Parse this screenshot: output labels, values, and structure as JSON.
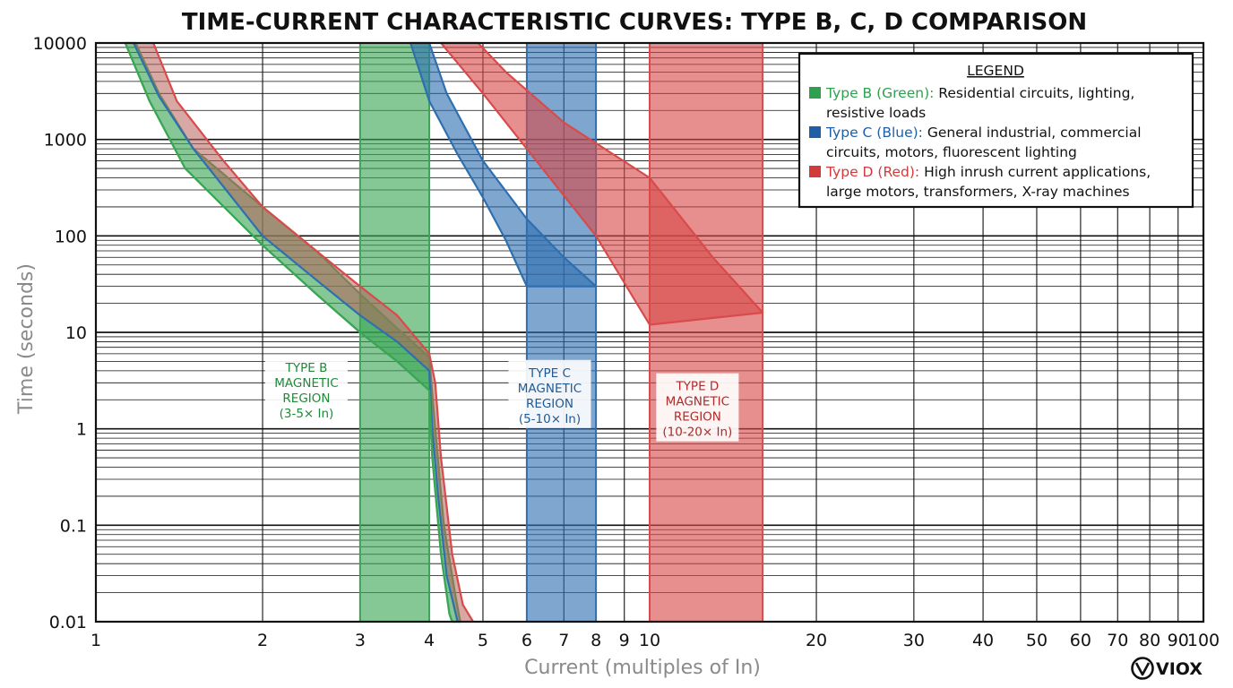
{
  "chart_data": {
    "type": "line",
    "title": "TIME-CURRENT CHARACTERISTIC CURVES: TYPE B, C, D COMPARISON",
    "xlabel": "Current (multiples of In)",
    "ylabel": "Time (seconds)",
    "xscale": "log",
    "yscale": "log",
    "xlim": [
      1,
      100
    ],
    "ylim": [
      0.01,
      10000
    ],
    "grid": true,
    "xticks": [
      1,
      2,
      3,
      4,
      5,
      6,
      7,
      8,
      9,
      10,
      20,
      30,
      40,
      50,
      60,
      70,
      80,
      90,
      100
    ],
    "xtick_labels": [
      "1",
      "2",
      "3",
      "4",
      "5",
      "6",
      "7",
      "8",
      "9",
      "10",
      "20",
      "30",
      "40",
      "50",
      "60",
      "70",
      "80",
      "90",
      "100"
    ],
    "yticks": [
      0.01,
      0.1,
      1,
      10,
      100,
      1000,
      10000
    ],
    "ytick_labels": [
      "0.01",
      "0.1",
      "1",
      "10",
      "100",
      "1000",
      "10000"
    ],
    "series": [
      {
        "name": "Type B",
        "color": "#3aa655",
        "band_upper": [
          [
            1.18,
            10000
          ],
          [
            1.3,
            3000
          ],
          [
            1.5,
            800
          ],
          [
            2,
            200
          ],
          [
            2.5,
            70
          ],
          [
            3,
            25
          ],
          [
            3.5,
            11
          ],
          [
            4,
            5.5
          ],
          [
            4.1,
            1
          ],
          [
            4.25,
            0.1
          ],
          [
            4.45,
            0.02
          ],
          [
            4.55,
            0.01
          ]
        ],
        "band_lower": [
          [
            1.13,
            10000
          ],
          [
            1.25,
            2500
          ],
          [
            1.45,
            500
          ],
          [
            2,
            80
          ],
          [
            2.5,
            25
          ],
          [
            3,
            10
          ],
          [
            3.5,
            5
          ],
          [
            4,
            2.5
          ],
          [
            4.05,
            0.5
          ],
          [
            4.2,
            0.05
          ],
          [
            4.35,
            0.012
          ],
          [
            4.4,
            0.01
          ]
        ],
        "magnetic_region": [
          3,
          4
        ]
      },
      {
        "name": "Type C",
        "color": "#2f6fb0",
        "band_upper": [
          [
            4,
            10000
          ],
          [
            4.3,
            3000
          ],
          [
            5,
            600
          ],
          [
            6,
            150
          ],
          [
            7,
            60
          ],
          [
            8,
            30
          ]
        ],
        "band_lower": [
          [
            3.7,
            10000
          ],
          [
            4,
            2500
          ],
          [
            4.5,
            700
          ],
          [
            5,
            250
          ],
          [
            5.5,
            90
          ],
          [
            6,
            30
          ]
        ],
        "magnetic_region": [
          6,
          8
        ]
      },
      {
        "name": "Type D",
        "color": "#d94a4a",
        "band_upper": [
          [
            4.9,
            10000
          ],
          [
            5.5,
            5000
          ],
          [
            7,
            1500
          ],
          [
            10,
            400
          ],
          [
            13,
            60
          ],
          [
            16,
            16
          ]
        ],
        "band_lower": [
          [
            4.2,
            10000
          ],
          [
            5,
            3000
          ],
          [
            6,
            800
          ],
          [
            8,
            100
          ],
          [
            10,
            12
          ]
        ],
        "magnetic_region": [
          10,
          16
        ]
      }
    ],
    "common_curve": {
      "name": "Overlapping thermal curve (B/C/D)",
      "upper": [
        [
          1.27,
          10000
        ],
        [
          1.4,
          2500
        ],
        [
          1.7,
          600
        ],
        [
          2,
          200
        ],
        [
          2.5,
          70
        ],
        [
          3,
          30
        ],
        [
          3.5,
          15
        ],
        [
          4,
          6
        ],
        [
          4.1,
          3
        ],
        [
          4.2,
          0.5
        ],
        [
          4.4,
          0.05
        ],
        [
          4.6,
          0.015
        ],
        [
          4.8,
          0.01
        ]
      ],
      "lower": [
        [
          1.17,
          10000
        ],
        [
          1.3,
          2800
        ],
        [
          1.5,
          800
        ],
        [
          2,
          100
        ],
        [
          2.5,
          35
        ],
        [
          3,
          15
        ],
        [
          3.5,
          8
        ],
        [
          4,
          4
        ],
        [
          4.05,
          1
        ],
        [
          4.15,
          0.2
        ],
        [
          4.3,
          0.03
        ],
        [
          4.5,
          0.01
        ]
      ]
    },
    "annotations": [
      {
        "lines": [
          "TYPE B",
          "MAGNETIC",
          "REGION",
          "(3-5× In)"
        ],
        "x": 2.4,
        "y": 2.5,
        "color": "#1f8a3a"
      },
      {
        "lines": [
          "TYPE C",
          "MAGNETIC",
          "REGION",
          "(5-10× In)"
        ],
        "x": 6.6,
        "y": 2.2,
        "color": "#1f5a96"
      },
      {
        "lines": [
          "TYPE D",
          "MAGNETIC",
          "REGION",
          "(10-20× In)"
        ],
        "x": 12.2,
        "y": 1.6,
        "color": "#b02a2a"
      }
    ]
  },
  "legend": {
    "title": "LEGEND",
    "placement": "top-right",
    "entries": [
      {
        "key": "Type B (Green):",
        "desc_line1": " Residential circuits, lighting,",
        "desc_line2": "resistive loads",
        "color": "#2ea04f"
      },
      {
        "key": "Type C (Blue):",
        "desc_line1": " General industrial, commercial",
        "desc_line2": "circuits, motors, fluorescent lighting",
        "color": "#1f5fa6"
      },
      {
        "key": "Type D (Red):",
        "desc_line1": " High inrush current applications,",
        "desc_line2": "large motors, transformers, X-ray machines",
        "color": "#d13b3b"
      }
    ]
  },
  "brand": {
    "name": "VIOX"
  },
  "colors": {
    "grid": "#111111",
    "background": "#ffffff"
  }
}
